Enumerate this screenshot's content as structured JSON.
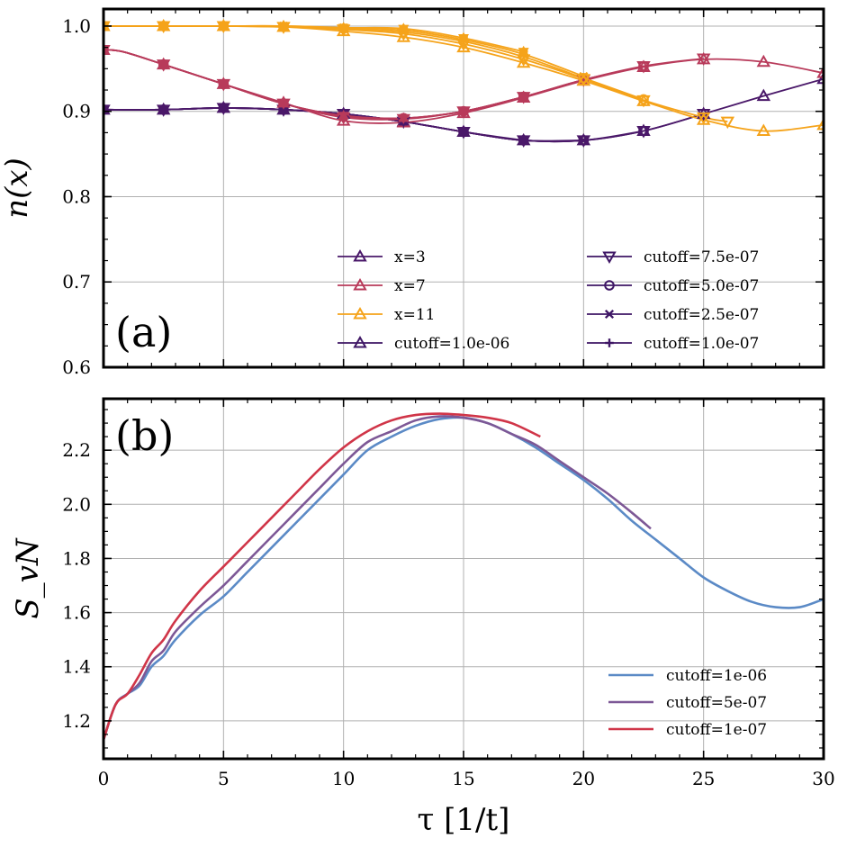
{
  "chart_data": [
    {
      "type": "line",
      "panel_label": "(a)",
      "ylabel": "n(x)",
      "xlabel": "",
      "xlim": [
        0,
        30
      ],
      "ylim": [
        0.6,
        1.02
      ],
      "xticks": [
        0,
        5,
        10,
        15,
        20,
        25,
        30
      ],
      "yticks": [
        0.6,
        0.7,
        0.8,
        0.9,
        1.0
      ],
      "ytick_labels": [
        "0.6",
        "0.7",
        "0.8",
        "0.9",
        "1.0"
      ],
      "grid": true,
      "legend": {
        "placement": "lower-right",
        "columns": [
          [
            "x=3",
            "x=7",
            "x=11",
            "cutoff=1.0e-06"
          ],
          [
            "cutoff=7.5e-07",
            "cutoff=5.0e-07",
            "cutoff=2.5e-07",
            "cutoff=1.0e-07"
          ]
        ],
        "entries": [
          {
            "label": "x=3",
            "color": "#4a1869",
            "marker": "triangle-up-open"
          },
          {
            "label": "x=7",
            "color": "#b83a5a",
            "marker": "triangle-up-open"
          },
          {
            "label": "x=11",
            "color": "#f5a31a",
            "marker": "triangle-up-open"
          },
          {
            "label": "cutoff=1.0e-06",
            "color": "#3e1665",
            "marker": "triangle-up-open"
          },
          {
            "label": "cutoff=7.5e-07",
            "color": "#3e1665",
            "marker": "triangle-down-open"
          },
          {
            "label": "cutoff=5.0e-07",
            "color": "#3e1665",
            "marker": "circle-open"
          },
          {
            "label": "cutoff=2.5e-07",
            "color": "#3e1665",
            "marker": "x"
          },
          {
            "label": "cutoff=1.0e-07",
            "color": "#3e1665",
            "marker": "plus"
          }
        ]
      },
      "series": [
        {
          "name": "x=3, cutoff=1.0e-06",
          "site": "x=3",
          "color": "#4a1869",
          "x": [
            0,
            2.5,
            5,
            7.5,
            10,
            12.5,
            15,
            17.5,
            20,
            22.5,
            25,
            27.5,
            30
          ],
          "y": [
            0.902,
            0.902,
            0.904,
            0.902,
            0.897,
            0.888,
            0.876,
            0.866,
            0.866,
            0.877,
            0.897,
            0.918,
            0.938
          ]
        },
        {
          "name": "x=3, cutoff=7.5e-07",
          "site": "x=3",
          "color": "#4a1869",
          "x": [
            0,
            2.5,
            5,
            7.5,
            10,
            12.5,
            15,
            17.5,
            20,
            22.5,
            25
          ],
          "y": [
            0.902,
            0.902,
            0.904,
            0.902,
            0.897,
            0.888,
            0.876,
            0.866,
            0.866,
            0.877,
            0.897
          ]
        },
        {
          "name": "x=3, cutoff=5.0e-07",
          "site": "x=3",
          "color": "#4a1869",
          "x": [
            0,
            2.5,
            5,
            7.5,
            10,
            12.5,
            15,
            17.5,
            20,
            22.5
          ],
          "y": [
            0.902,
            0.902,
            0.904,
            0.902,
            0.897,
            0.888,
            0.876,
            0.866,
            0.866,
            0.877
          ]
        },
        {
          "name": "x=3, cutoff=2.5e-07",
          "site": "x=3",
          "color": "#4a1869",
          "x": [
            0,
            2.5,
            5,
            7.5,
            10,
            12.5,
            15,
            17.5,
            20
          ],
          "y": [
            0.902,
            0.902,
            0.904,
            0.902,
            0.897,
            0.888,
            0.876,
            0.866,
            0.866
          ]
        },
        {
          "name": "x=3, cutoff=1.0e-07",
          "site": "x=3",
          "color": "#4a1869",
          "x": [
            0,
            2.5,
            5,
            7.5,
            10,
            12.5,
            15,
            17.5
          ],
          "y": [
            0.902,
            0.902,
            0.904,
            0.902,
            0.897,
            0.888,
            0.876,
            0.866
          ]
        },
        {
          "name": "x=7, cutoff=1.0e-06",
          "site": "x=7",
          "color": "#b83a5a",
          "x": [
            0,
            0.8,
            2.5,
            5,
            7.5,
            10,
            12.5,
            15,
            17.5,
            20,
            22.5,
            25,
            27.5,
            30
          ],
          "y": [
            0.972,
            0.97,
            0.955,
            0.932,
            0.91,
            0.889,
            0.887,
            0.898,
            0.916,
            0.936,
            0.952,
            0.961,
            0.958,
            0.945
          ]
        },
        {
          "name": "x=7, cutoff=7.5e-07",
          "site": "x=7",
          "color": "#b83a5a",
          "x": [
            0,
            0.8,
            2.5,
            5,
            7.5,
            10,
            12.5,
            15,
            17.5,
            20,
            22.5,
            25
          ],
          "y": [
            0.972,
            0.97,
            0.955,
            0.932,
            0.909,
            0.893,
            0.891,
            0.9,
            0.917,
            0.937,
            0.953,
            0.962
          ]
        },
        {
          "name": "x=7, cutoff=5.0e-07",
          "site": "x=7",
          "color": "#b83a5a",
          "x": [
            0,
            0.8,
            2.5,
            5,
            7.5,
            10,
            12.5,
            15,
            17.5,
            20,
            22.5
          ],
          "y": [
            0.972,
            0.97,
            0.955,
            0.932,
            0.909,
            0.894,
            0.892,
            0.9,
            0.917,
            0.937,
            0.953
          ]
        },
        {
          "name": "x=7, cutoff=2.5e-07",
          "site": "x=7",
          "color": "#b83a5a",
          "x": [
            0,
            0.8,
            2.5,
            5,
            7.5,
            10,
            12.5,
            15,
            17.5,
            20
          ],
          "y": [
            0.972,
            0.97,
            0.955,
            0.932,
            0.909,
            0.895,
            0.892,
            0.9,
            0.917,
            0.937
          ]
        },
        {
          "name": "x=7, cutoff=1.0e-07",
          "site": "x=7",
          "color": "#b83a5a",
          "x": [
            0,
            0.8,
            2.5,
            5,
            7.5,
            10,
            12.5,
            15,
            17.5
          ],
          "y": [
            0.972,
            0.97,
            0.955,
            0.932,
            0.909,
            0.895,
            0.892,
            0.9,
            0.917
          ]
        },
        {
          "name": "x=11, cutoff=1.0e-06",
          "site": "x=11",
          "color": "#f5a31a",
          "x": [
            0,
            2.5,
            5,
            7.5,
            10,
            12.5,
            15,
            17.5,
            20,
            22.5,
            25,
            27.5,
            30
          ],
          "y": [
            1.0,
            1.0,
            1.0,
            0.999,
            0.994,
            0.987,
            0.975,
            0.957,
            0.936,
            0.912,
            0.89,
            0.877,
            0.884
          ]
        },
        {
          "name": "x=11, cutoff=7.5e-07",
          "site": "x=11",
          "color": "#f5a31a",
          "x": [
            0,
            2.5,
            5,
            7.5,
            10,
            12.5,
            15,
            17.5,
            20,
            22.5,
            25,
            26
          ],
          "y": [
            1.0,
            1.0,
            1.0,
            0.999,
            0.996,
            0.991,
            0.979,
            0.961,
            0.938,
            0.913,
            0.893,
            0.888
          ]
        },
        {
          "name": "x=11, cutoff=5.0e-07",
          "site": "x=11",
          "color": "#f5a31a",
          "x": [
            0,
            2.5,
            5,
            7.5,
            10,
            12.5,
            15,
            17.5,
            20,
            22.5
          ],
          "y": [
            1.0,
            1.0,
            1.0,
            0.999,
            0.997,
            0.993,
            0.982,
            0.964,
            0.939,
            0.914
          ]
        },
        {
          "name": "x=11, cutoff=2.5e-07",
          "site": "x=11",
          "color": "#f5a31a",
          "x": [
            0,
            2.5,
            5,
            7.5,
            10,
            12.5,
            15,
            17.5,
            20
          ],
          "y": [
            1.0,
            1.0,
            1.0,
            1.0,
            0.998,
            0.995,
            0.984,
            0.967,
            0.941
          ]
        },
        {
          "name": "x=11, cutoff=1.0e-07",
          "site": "x=11",
          "color": "#f5a31a",
          "x": [
            0,
            2.5,
            5,
            7.5,
            10,
            12.5,
            15,
            17.5
          ],
          "y": [
            1.0,
            1.0,
            1.0,
            1.0,
            0.998,
            0.997,
            0.986,
            0.97
          ]
        }
      ]
    },
    {
      "type": "line",
      "panel_label": "(b)",
      "ylabel": "S_vN",
      "xlabel": "τ [1/t]",
      "xlim": [
        0,
        30
      ],
      "ylim": [
        1.06,
        2.39
      ],
      "xticks": [
        0,
        5,
        10,
        15,
        20,
        25,
        30
      ],
      "xtick_labels": [
        "0",
        "5",
        "10",
        "15",
        "20",
        "25",
        "30"
      ],
      "yticks": [
        1.2,
        1.4,
        1.6,
        1.8,
        2.0,
        2.2
      ],
      "ytick_labels": [
        "1.2",
        "1.4",
        "1.6",
        "1.8",
        "2.0",
        "2.2"
      ],
      "grid": true,
      "legend": {
        "placement": "lower-right"
      },
      "series": [
        {
          "name": "cutoff=1e-06",
          "color": "#5b8ac6",
          "x": [
            0,
            0.5,
            1,
            1.5,
            2,
            2.5,
            3,
            4,
            5,
            6,
            7,
            8,
            9,
            10,
            11,
            12,
            13,
            14,
            15,
            16,
            17,
            18,
            19,
            20,
            21,
            22,
            23,
            24,
            25,
            26,
            27,
            28,
            29,
            30
          ],
          "y": [
            1.13,
            1.26,
            1.3,
            1.33,
            1.4,
            1.44,
            1.5,
            1.59,
            1.66,
            1.75,
            1.84,
            1.93,
            2.02,
            2.11,
            2.2,
            2.25,
            2.29,
            2.315,
            2.32,
            2.3,
            2.26,
            2.21,
            2.15,
            2.09,
            2.02,
            1.94,
            1.87,
            1.8,
            1.73,
            1.68,
            1.64,
            1.62,
            1.62,
            1.65
          ]
        },
        {
          "name": "cutoff=5e-07",
          "color": "#7d5896",
          "x": [
            0,
            0.5,
            1,
            1.5,
            2,
            2.5,
            3,
            4,
            5,
            6,
            7,
            8,
            9,
            10,
            11,
            12,
            13,
            14,
            15,
            16,
            17,
            18,
            19,
            20,
            21,
            22,
            22.8
          ],
          "y": [
            1.13,
            1.26,
            1.3,
            1.34,
            1.42,
            1.46,
            1.53,
            1.62,
            1.7,
            1.79,
            1.88,
            1.97,
            2.06,
            2.15,
            2.23,
            2.27,
            2.31,
            2.325,
            2.32,
            2.3,
            2.26,
            2.22,
            2.16,
            2.1,
            2.04,
            1.97,
            1.91
          ]
        },
        {
          "name": "cutoff=1e-07",
          "color": "#d03548",
          "x": [
            0,
            0.5,
            1,
            1.5,
            2,
            2.5,
            3,
            4,
            5,
            6,
            7,
            8,
            9,
            10,
            11,
            12,
            13,
            14,
            15,
            16,
            17,
            18.2
          ],
          "y": [
            1.13,
            1.26,
            1.3,
            1.37,
            1.45,
            1.5,
            1.57,
            1.68,
            1.77,
            1.86,
            1.95,
            2.04,
            2.13,
            2.21,
            2.27,
            2.31,
            2.33,
            2.335,
            2.33,
            2.32,
            2.3,
            2.25
          ]
        }
      ]
    }
  ]
}
